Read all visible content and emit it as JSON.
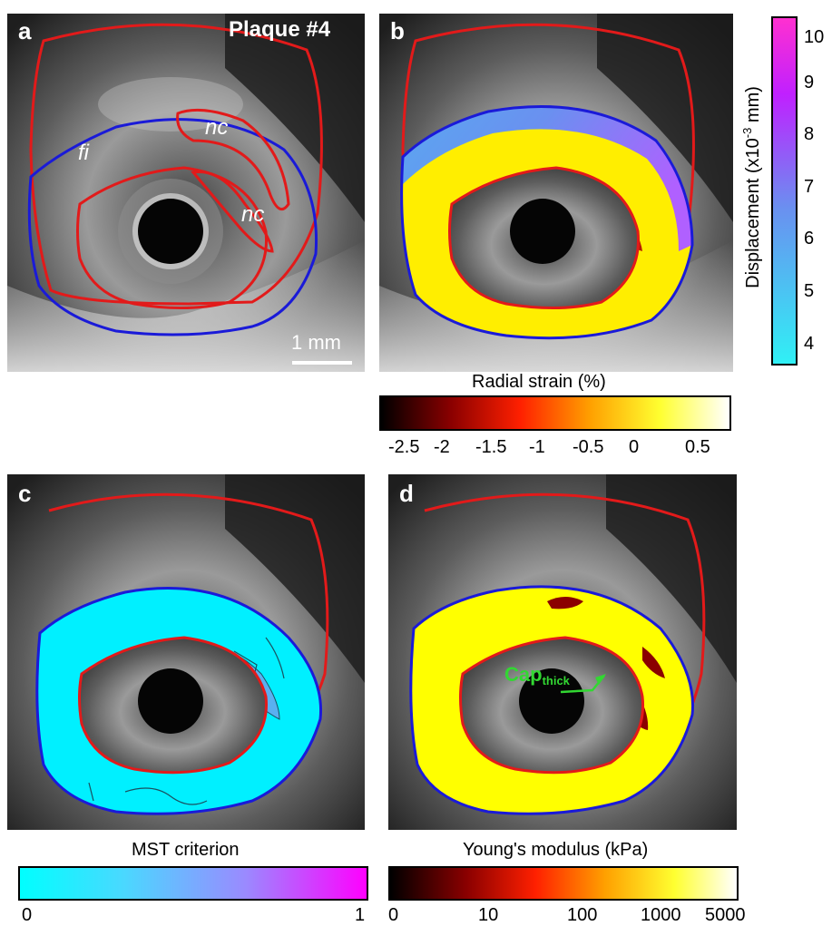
{
  "panels": {
    "a": {
      "label": "a",
      "title": "Plaque #4",
      "fi": "fi",
      "nc1": "nc",
      "nc2": "nc",
      "scale": "1 mm"
    },
    "b": {
      "label": "b"
    },
    "c": {
      "label": "c"
    },
    "d": {
      "label": "d",
      "cap": "Cap",
      "cap_sub": "thick"
    }
  },
  "colorbars": {
    "displacement": {
      "title": "Displacement (x10",
      "title_sup": "-3",
      "title_end": " mm)",
      "ticks": [
        "4",
        "5",
        "6",
        "7",
        "8",
        "9",
        "10"
      ],
      "colors": [
        "#30f0f5",
        "#c020ff",
        "#ff30d0"
      ]
    },
    "radial_strain": {
      "title": "Radial strain (%)",
      "ticks": [
        "-2.5",
        "-2",
        "-1.5",
        "-1",
        "-0.5",
        "0",
        "0.5"
      ],
      "colors": [
        "#000000",
        "#8a0000",
        "#ff2000",
        "#ffa000",
        "#ffff30",
        "#ffffff"
      ]
    },
    "mst": {
      "title": "MST criterion",
      "ticks": [
        "0",
        "1"
      ],
      "colors": [
        "#00ffff",
        "#ff00ff"
      ]
    },
    "youngs": {
      "title": "Young's modulus (kPa)",
      "ticks": [
        "0",
        "10",
        "100",
        "1000",
        "5000"
      ],
      "colors": [
        "#000000",
        "#8a0000",
        "#ff2000",
        "#ffa000",
        "#ffff30",
        "#ffffff"
      ]
    }
  },
  "colors": {
    "contour_red": "#e21a1a",
    "contour_blue": "#1a1ad8",
    "strain_yellow": "#ffee00",
    "mst_cyan": "#00f0ff",
    "youngs_yellow": "#ffff00",
    "nc_darkred": "#8b0000",
    "cap_green": "#32d732"
  }
}
